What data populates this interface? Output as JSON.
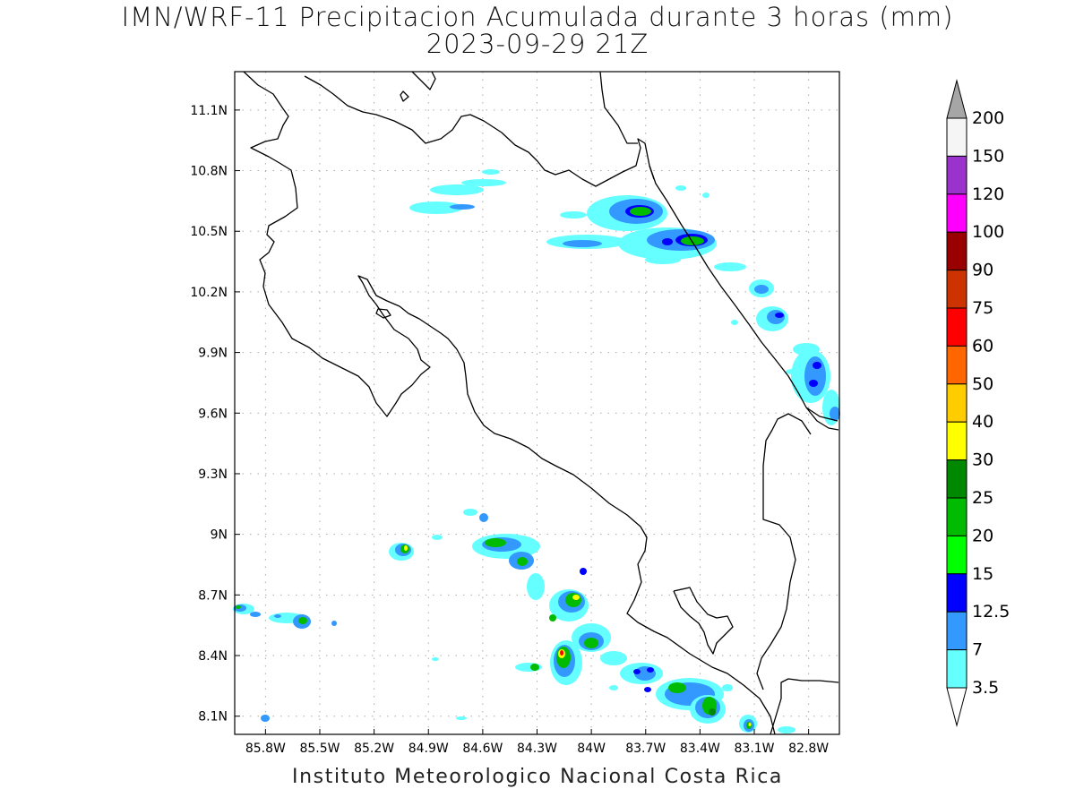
{
  "header": {
    "title": "IMN/WRF-11 Precipitacion Acumulada durante 3 horas (mm)",
    "date": "2023-09-29 21Z"
  },
  "map": {
    "lat_ticks": [
      "11.1N",
      "10.8N",
      "10.5N",
      "10.2N",
      "9.9N",
      "9.6N",
      "9.3N",
      "9N",
      "8.7N",
      "8.4N",
      "8.1N"
    ],
    "lon_ticks": [
      "85.8W",
      "85.5W",
      "85.2W",
      "84.9W",
      "84.6W",
      "84.3W",
      "84W",
      "83.7W",
      "83.4W",
      "83.1W",
      "82.8W"
    ],
    "lat_values": [
      11.1,
      10.8,
      10.5,
      10.2,
      9.9,
      9.6,
      9.3,
      9.0,
      8.7,
      8.4,
      8.1
    ],
    "lon_values": [
      -85.8,
      -85.5,
      -85.2,
      -84.9,
      -84.6,
      -84.3,
      -84.0,
      -83.7,
      -83.4,
      -83.1,
      -82.8
    ],
    "extent": {
      "lon_min": -85.97,
      "lon_max": -82.63,
      "lat_min": 8.01,
      "lat_max": 11.29
    }
  },
  "colorbar": {
    "labels": [
      "200",
      "150",
      "120",
      "100",
      "90",
      "75",
      "60",
      "50",
      "40",
      "30",
      "25",
      "20",
      "15",
      "12.5",
      "7",
      "3.5"
    ],
    "colors": [
      "#f5f5f5",
      "#9933cc",
      "#ff00ff",
      "#990000",
      "#cc3300",
      "#ff0000",
      "#ff6600",
      "#ffcc00",
      "#ffff00",
      "#008800",
      "#00bb00",
      "#00ff00",
      "#0000ff",
      "#3399ff",
      "#66ffff"
    ],
    "over_color": "#a6a6a6"
  },
  "footer": {
    "credit": "Instituto Meteorologico Nacional Costa Rica"
  }
}
